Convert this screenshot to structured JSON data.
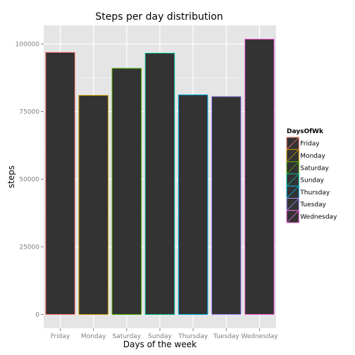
{
  "chart_data": {
    "type": "bar",
    "title": "Steps per day distribution",
    "xlabel": "Days of the week",
    "ylabel": "steps",
    "categories": [
      "Friday",
      "Monday",
      "Saturday",
      "Sunday",
      "Thursday",
      "Tuesday",
      "Wednesday"
    ],
    "values": [
      96900,
      81000,
      91000,
      96600,
      81200,
      80600,
      101800
    ],
    "ylim": [
      -5090,
      106890
    ],
    "yticks": [
      0,
      25000,
      50000,
      75000,
      100000
    ],
    "ytick_labels": [
      "0",
      "25000",
      "50000",
      "75000",
      "100000"
    ],
    "grid": true,
    "bar_fill": "#333333",
    "panel_bg": "#e5e5e5",
    "legend": {
      "title": "DaysOfWk",
      "placement": "right",
      "entries": [
        {
          "label": "Friday",
          "color": "#F8766D"
        },
        {
          "label": "Monday",
          "color": "#C49A00"
        },
        {
          "label": "Saturday",
          "color": "#53B400"
        },
        {
          "label": "Sunday",
          "color": "#00C094"
        },
        {
          "label": "Thursday",
          "color": "#00B6EB"
        },
        {
          "label": "Tuesday",
          "color": "#A58AFF"
        },
        {
          "label": "Wednesday",
          "color": "#FB61D7"
        }
      ]
    }
  }
}
